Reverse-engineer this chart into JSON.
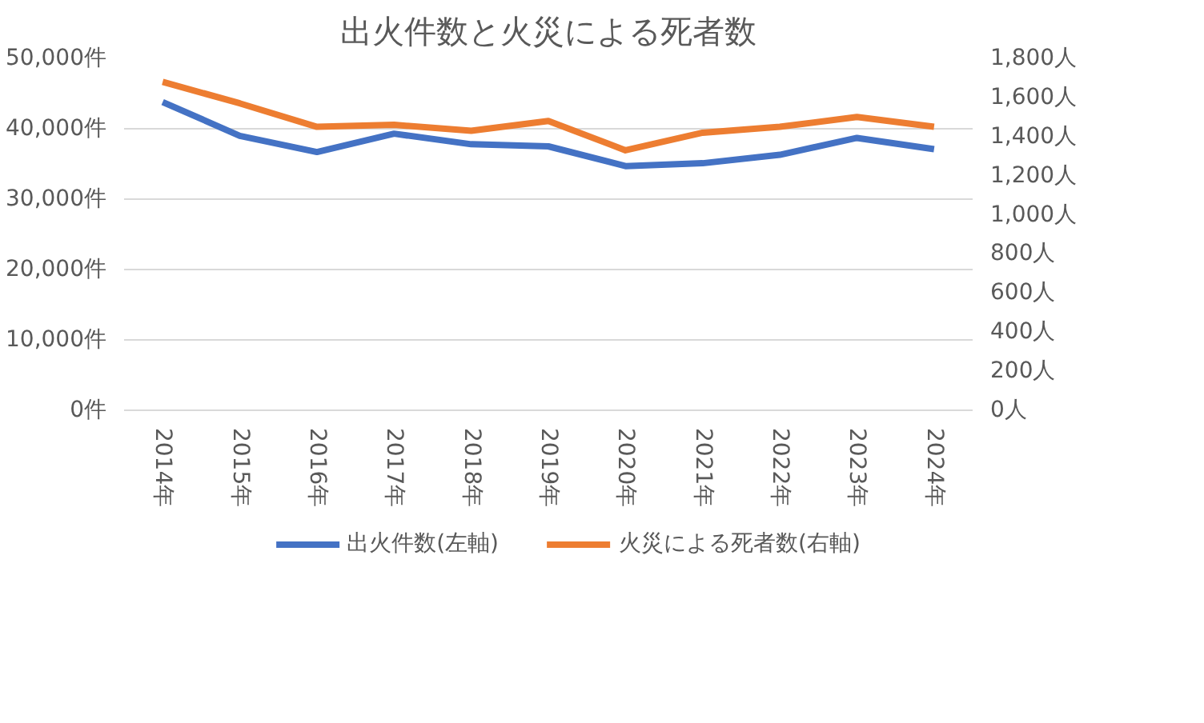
{
  "chart_data": {
    "type": "line",
    "title": "出火件数と火災による死者数",
    "categories": [
      "2014年",
      "2015年",
      "2016年",
      "2017年",
      "2018年",
      "2019年",
      "2020年",
      "2021年",
      "2022年",
      "2023年",
      "2024年"
    ],
    "series": [
      {
        "name": "出火件数(左軸)",
        "color": "#4472c4",
        "values": [
          43800,
          39000,
          36700,
          39300,
          37800,
          37500,
          34700,
          35100,
          36300,
          38700,
          37100
        ]
      },
      {
        "name": "火災による死者数(右軸)",
        "color": "#ed7d31",
        "axis": "y2",
        "values": [
          1680,
          1570,
          1450,
          1460,
          1430,
          1480,
          1330,
          1420,
          1450,
          1500,
          1450
        ]
      }
    ],
    "ylim": [
      0,
      50000
    ],
    "yticks": [
      {
        "value": 0,
        "label": "0件"
      },
      {
        "value": 10000,
        "label": "10,000件"
      },
      {
        "value": 20000,
        "label": "20,000件"
      },
      {
        "value": 30000,
        "label": "30,000件"
      },
      {
        "value": 40000,
        "label": "40,000件"
      },
      {
        "value": 50000,
        "label": "50,000件"
      }
    ],
    "y2lim": [
      0,
      1800
    ],
    "y2ticks": [
      {
        "value": 0,
        "label": "0人"
      },
      {
        "value": 200,
        "label": "200人"
      },
      {
        "value": 400,
        "label": "400人"
      },
      {
        "value": 600,
        "label": "600人"
      },
      {
        "value": 800,
        "label": "800人"
      },
      {
        "value": 1000,
        "label": "1,000人"
      },
      {
        "value": 1200,
        "label": "1,200人"
      },
      {
        "value": 1400,
        "label": "1,400人"
      },
      {
        "value": 1600,
        "label": "1,600人"
      },
      {
        "value": 1800,
        "label": "1,800人"
      }
    ],
    "grid": "y",
    "legend": "bottom",
    "marker": "none",
    "line_style": "solid"
  }
}
